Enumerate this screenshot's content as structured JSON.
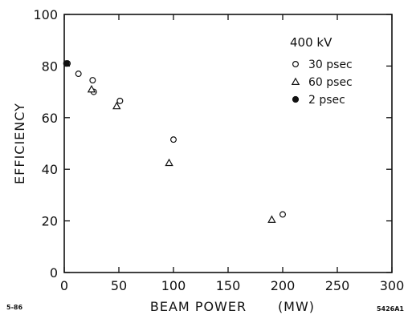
{
  "chart_data": {
    "type": "scatter",
    "title": "",
    "xlabel": "BEAM POWER",
    "xunit": "(MW)",
    "ylabel": "EFFICIENCY",
    "xlim": [
      0,
      300
    ],
    "ylim": [
      0,
      100
    ],
    "xticks": [
      "0",
      "50",
      "100",
      "150",
      "200",
      "250",
      "300"
    ],
    "yticks": [
      "0",
      "20",
      "40",
      "60",
      "80",
      "100"
    ],
    "grid": false,
    "legend_title": "400 kV",
    "legend_position": "top-right",
    "series": [
      {
        "name": "30 psec",
        "marker": "open-circle",
        "points": [
          [
            3,
            81
          ],
          [
            13,
            77
          ],
          [
            26,
            74.5
          ],
          [
            27,
            70
          ],
          [
            51,
            66.5
          ],
          [
            100,
            51.5
          ],
          [
            200,
            22.5
          ]
        ]
      },
      {
        "name": "60 psec",
        "marker": "open-triangle",
        "points": [
          [
            25,
            71
          ],
          [
            48,
            64.5
          ],
          [
            96,
            42.5
          ],
          [
            190,
            20.5
          ]
        ]
      },
      {
        "name": "2 psec",
        "marker": "filled-circle",
        "points": [
          [
            2,
            81
          ]
        ]
      }
    ]
  },
  "footer": {
    "left_code": "5-86",
    "right_code": "5426A1"
  }
}
